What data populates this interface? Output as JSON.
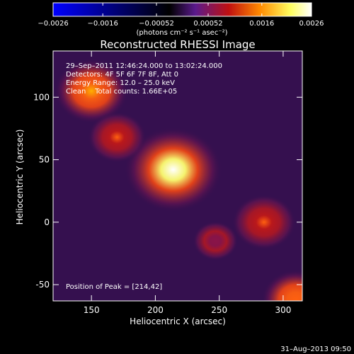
{
  "chart_data": {
    "type": "heatmap",
    "title": "Reconstructed RHESSI Image",
    "xlabel": "Heliocentric X (arcsec)",
    "ylabel": "Heliocentric Y (arcsec)",
    "xlim": [
      120,
      315
    ],
    "ylim": [
      -63,
      137
    ],
    "x_ticks": [
      "150",
      "200",
      "250",
      "300"
    ],
    "y_ticks": [
      "-50",
      "0",
      "50",
      "100"
    ],
    "colorbar": {
      "ticks": [
        "−0.0026",
        "−0.0016",
        "−0.00052",
        "0.00052",
        "0.0016",
        "0.0026"
      ],
      "range": [
        -0.0026,
        0.0026
      ],
      "unit_label": "(photons cm⁻² s⁻¹ asec⁻²)",
      "colors": [
        "#0000ff",
        "#000000",
        "#5a1a8c",
        "#c01010",
        "#ff8a00",
        "#ffff60",
        "#ffffff"
      ]
    },
    "annotations": [
      "29–Sep–2011 12:46:24.000 to 13:02:24.000",
      "Detectors: 4F 5F 6F 7F 8F, Att 0",
      "Energy Range: 12.0 – 25.0 keV",
      "Clean    Total counts: 1.66E+05"
    ],
    "peak_label": "Position of Peak = [214,42]",
    "sources": [
      {
        "x": 214,
        "y": 42,
        "peak": 0.0026
      },
      {
        "x": 150,
        "y": 105,
        "peak": 0.0017
      },
      {
        "x": 170,
        "y": 68,
        "peak": 0.0011
      },
      {
        "x": 285,
        "y": 0,
        "peak": 0.0013
      },
      {
        "x": 247,
        "y": -15,
        "peak": 0.0006
      },
      {
        "x": 310,
        "y": -62,
        "peak": 0.0015
      }
    ]
  },
  "footer": {
    "date": "31–Aug–2013 09:50"
  }
}
